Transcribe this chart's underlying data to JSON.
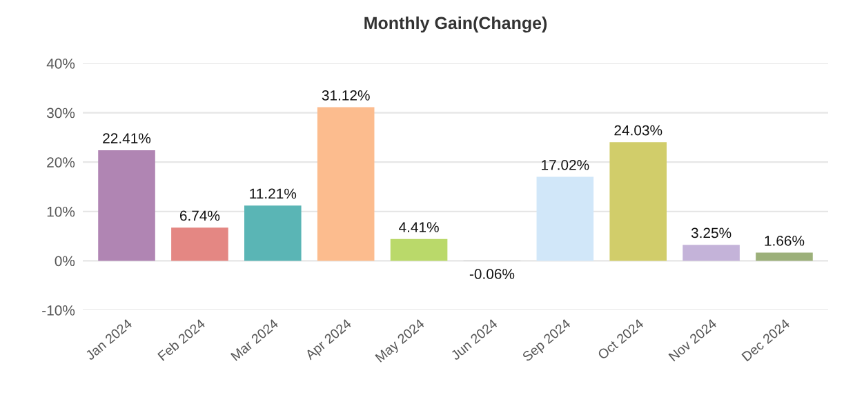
{
  "chart_data": {
    "type": "bar",
    "title": "Monthly Gain(Change)",
    "categories": [
      "Jan 2024",
      "Feb 2024",
      "Mar 2024",
      "Apr 2024",
      "May 2024",
      "Jun 2024",
      "Sep 2024",
      "Oct 2024",
      "Nov 2024",
      "Dec 2024"
    ],
    "values": [
      22.41,
      6.74,
      11.21,
      31.12,
      4.41,
      -0.06,
      17.02,
      24.03,
      3.25,
      1.66
    ],
    "value_labels": [
      "22.41%",
      "6.74%",
      "11.21%",
      "31.12%",
      "4.41%",
      "-0.06%",
      "17.02%",
      "24.03%",
      "3.25%",
      "1.66%"
    ],
    "colors": [
      "#b085b3",
      "#e48783",
      "#5ab5b5",
      "#fcbc8e",
      "#bad96a",
      "#9a9a9a",
      "#d1e7f9",
      "#d1cd6a",
      "#c4b3d9",
      "#9cb07a"
    ],
    "ylim": [
      -10,
      40
    ],
    "yticks": [
      {
        "value": -10,
        "label": "-10%"
      },
      {
        "value": 0,
        "label": "0%"
      },
      {
        "value": 10,
        "label": "10%"
      },
      {
        "value": 20,
        "label": "20%"
      },
      {
        "value": 30,
        "label": "30%"
      },
      {
        "value": 40,
        "label": "40%"
      }
    ],
    "grid": "y",
    "legend": false
  }
}
